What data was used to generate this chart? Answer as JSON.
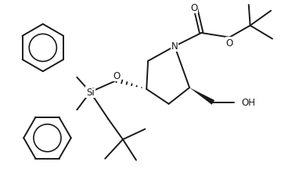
{
  "bg_color": "#ffffff",
  "line_color": "#1a1a1a",
  "lw": 1.4,
  "fig_width": 3.82,
  "fig_height": 2.26,
  "dpi": 100,
  "xlim": [
    0,
    10
  ],
  "ylim": [
    0,
    5.9
  ]
}
